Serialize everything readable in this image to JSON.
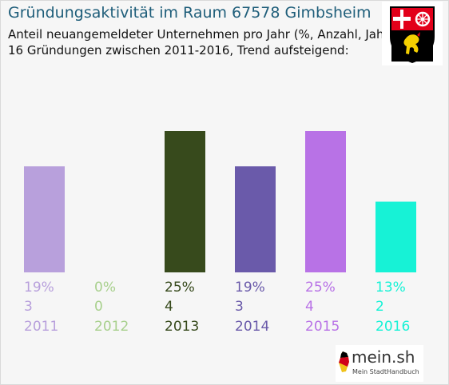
{
  "header": {
    "title": "Gründungsaktivität im Raum 67578 Gimbsheim",
    "subtitle_line1": "Anteil neuangemeldeter Unternehmen pro Jahr (%, Anzahl, Jahr)",
    "subtitle_line2": "16 Gründungen zwischen 2011-2016, Trend aufsteigend:"
  },
  "crest": {
    "icon": "rhineland-palatinate-coat-of-arms-icon",
    "colors": {
      "red": "#e2001a",
      "black": "#000000",
      "gold": "#f5d000",
      "white": "#ffffff"
    }
  },
  "logo": {
    "name": "mein.sh",
    "tagline": "Mein StadtHandbuch"
  },
  "chart_data": {
    "type": "bar",
    "categories": [
      "2011",
      "2012",
      "2013",
      "2014",
      "2015",
      "2016"
    ],
    "values": [
      3,
      0,
      4,
      3,
      4,
      2
    ],
    "percent_labels": [
      "19%",
      "0%",
      "25%",
      "19%",
      "25%",
      "13%"
    ],
    "colors": [
      "#b8a0dc",
      "#a8d08d",
      "#374a1c",
      "#6a5aaa",
      "#b872e6",
      "#17f2d6"
    ],
    "ylim": [
      0,
      4
    ],
    "grid": false,
    "legend": "none",
    "xlabel": "",
    "ylabel": ""
  }
}
